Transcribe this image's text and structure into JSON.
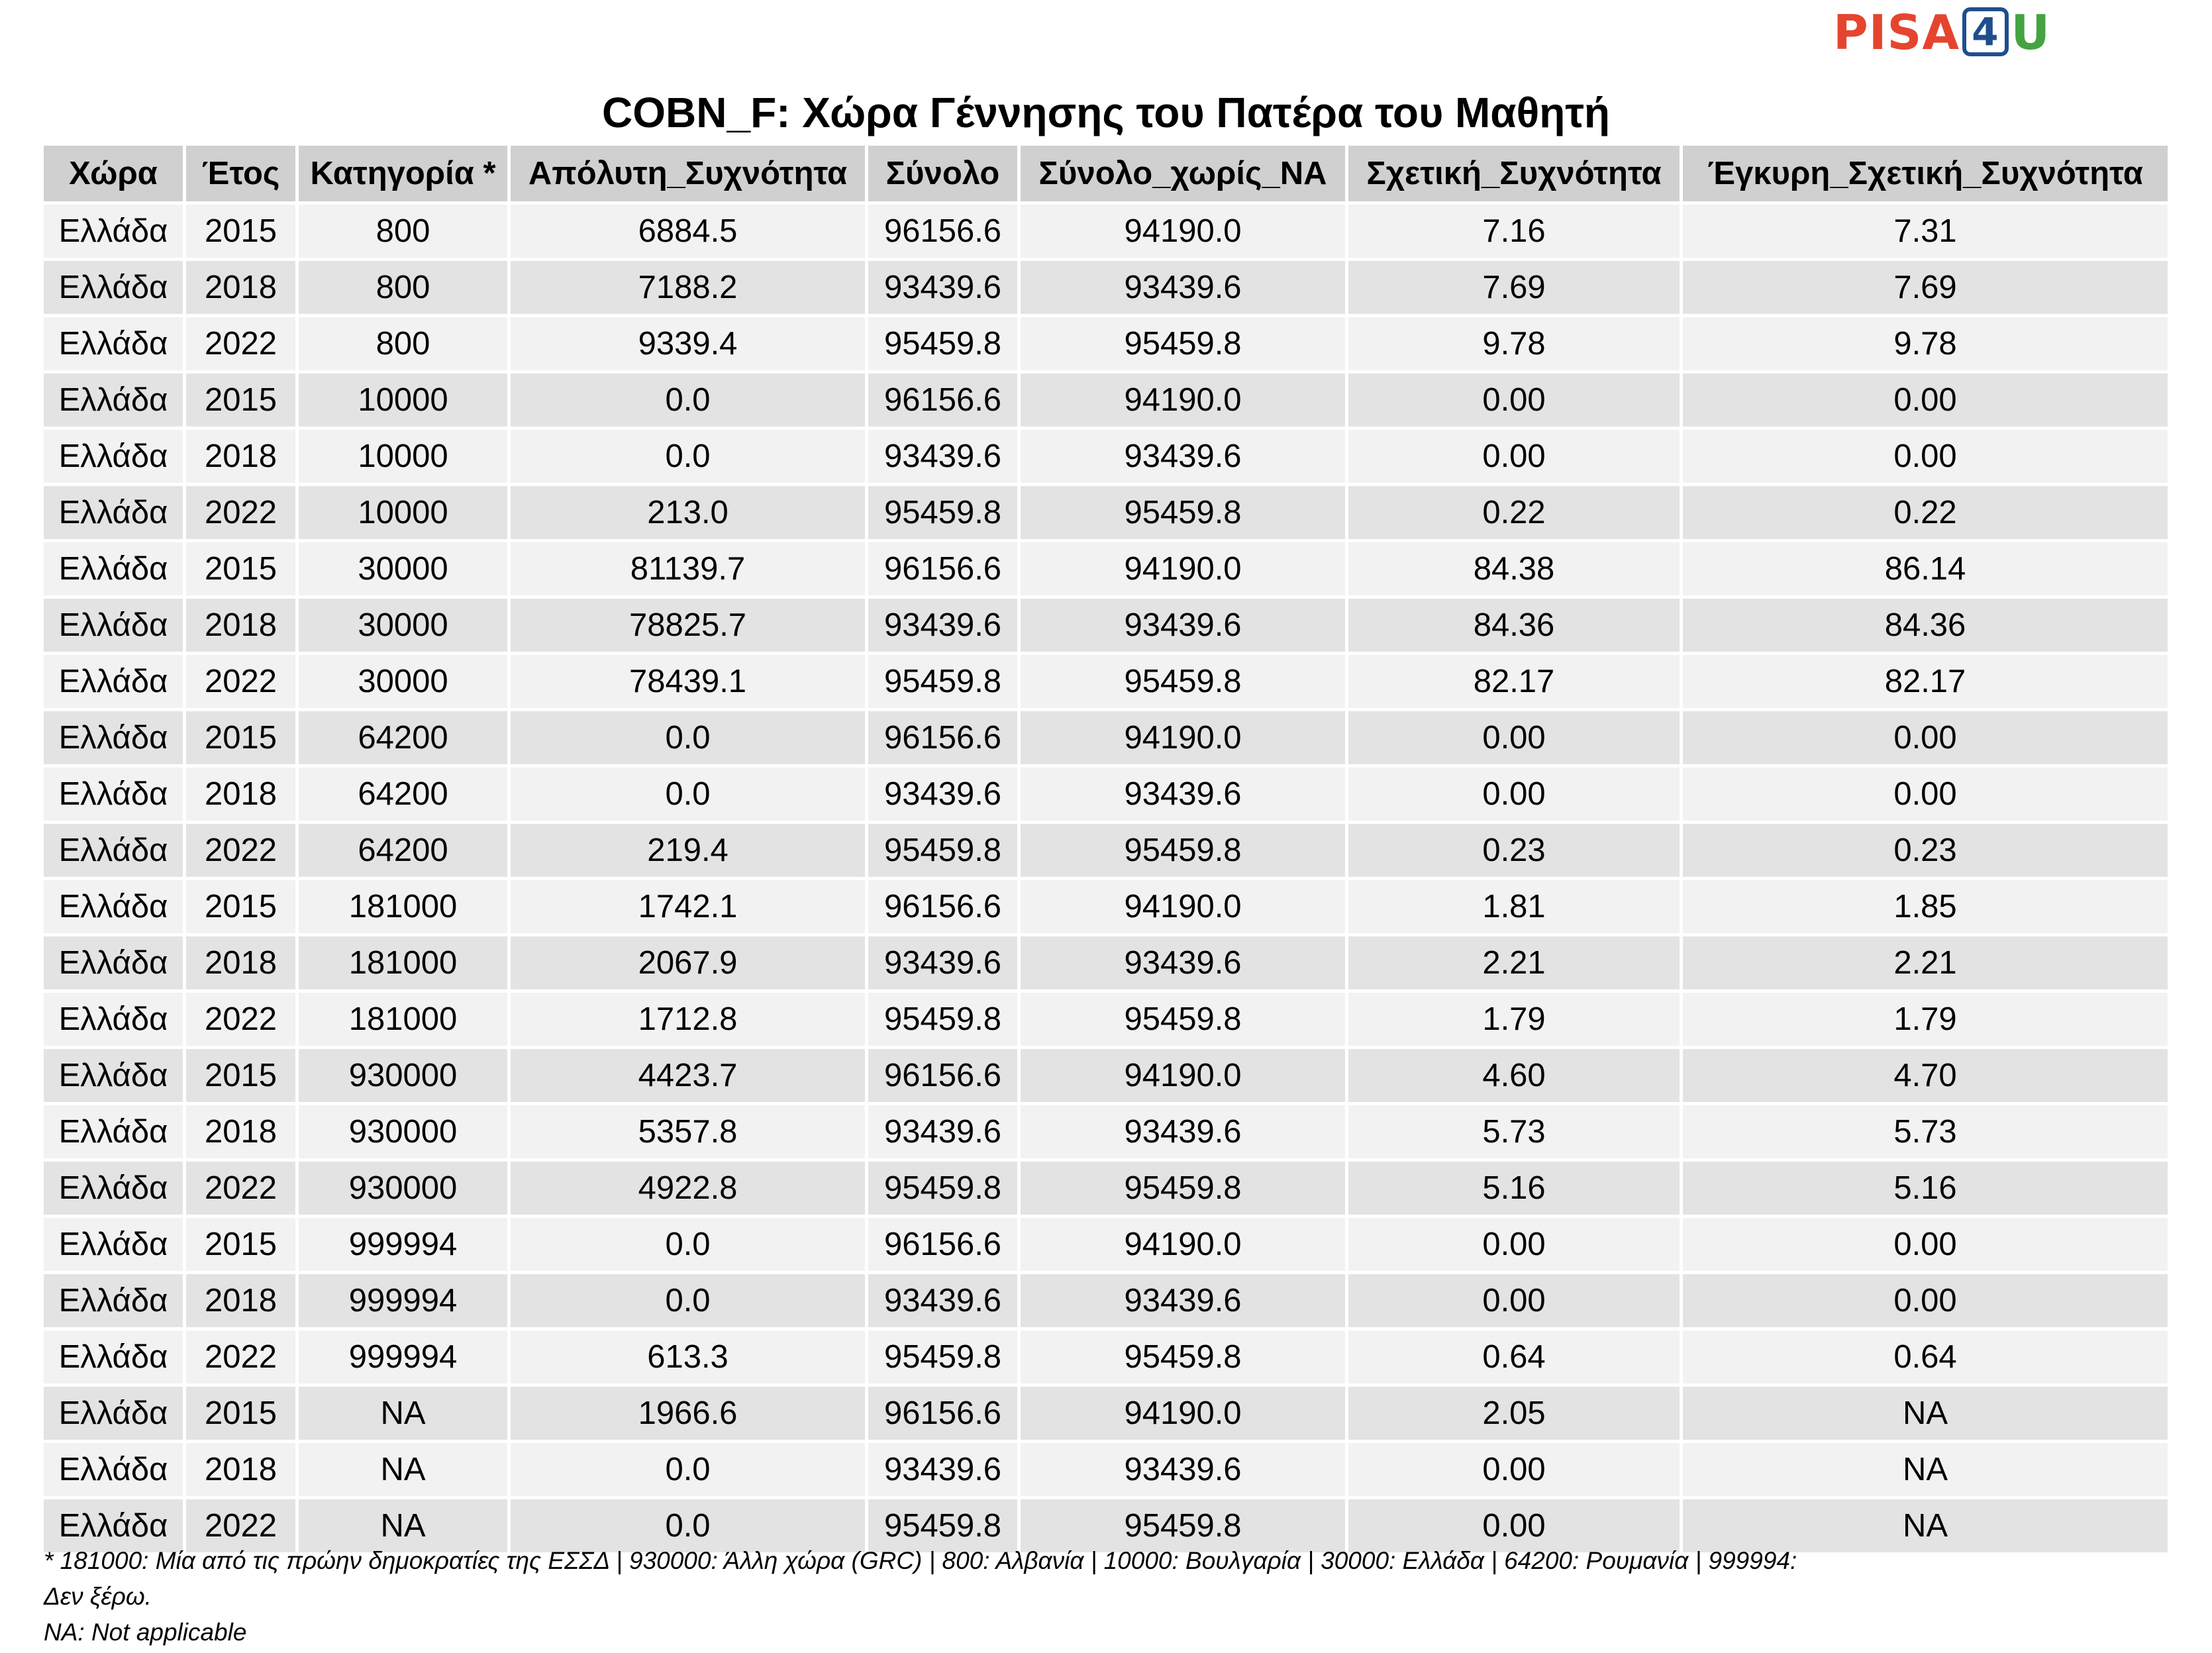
{
  "logo": {
    "part1": "PISA",
    "part2": "4",
    "part3": "U"
  },
  "title": "COBN_F: Χώρα Γέννησης του Πατέρα του Μαθητή",
  "table": {
    "columns": [
      "Χώρα",
      "Έτος",
      "Κατηγορία *",
      "Απόλυτη_Συχνότητα",
      "Σύνολο",
      "Σύνολο_χωρίς_NA",
      "Σχετική_Συχνότητα",
      "Έγκυρη_Σχετική_Συχνότητα"
    ],
    "rows": [
      [
        "Ελλάδα",
        "2015",
        "800",
        "6884.5",
        "96156.6",
        "94190.0",
        "7.16",
        "7.31"
      ],
      [
        "Ελλάδα",
        "2018",
        "800",
        "7188.2",
        "93439.6",
        "93439.6",
        "7.69",
        "7.69"
      ],
      [
        "Ελλάδα",
        "2022",
        "800",
        "9339.4",
        "95459.8",
        "95459.8",
        "9.78",
        "9.78"
      ],
      [
        "Ελλάδα",
        "2015",
        "10000",
        "0.0",
        "96156.6",
        "94190.0",
        "0.00",
        "0.00"
      ],
      [
        "Ελλάδα",
        "2018",
        "10000",
        "0.0",
        "93439.6",
        "93439.6",
        "0.00",
        "0.00"
      ],
      [
        "Ελλάδα",
        "2022",
        "10000",
        "213.0",
        "95459.8",
        "95459.8",
        "0.22",
        "0.22"
      ],
      [
        "Ελλάδα",
        "2015",
        "30000",
        "81139.7",
        "96156.6",
        "94190.0",
        "84.38",
        "86.14"
      ],
      [
        "Ελλάδα",
        "2018",
        "30000",
        "78825.7",
        "93439.6",
        "93439.6",
        "84.36",
        "84.36"
      ],
      [
        "Ελλάδα",
        "2022",
        "30000",
        "78439.1",
        "95459.8",
        "95459.8",
        "82.17",
        "82.17"
      ],
      [
        "Ελλάδα",
        "2015",
        "64200",
        "0.0",
        "96156.6",
        "94190.0",
        "0.00",
        "0.00"
      ],
      [
        "Ελλάδα",
        "2018",
        "64200",
        "0.0",
        "93439.6",
        "93439.6",
        "0.00",
        "0.00"
      ],
      [
        "Ελλάδα",
        "2022",
        "64200",
        "219.4",
        "95459.8",
        "95459.8",
        "0.23",
        "0.23"
      ],
      [
        "Ελλάδα",
        "2015",
        "181000",
        "1742.1",
        "96156.6",
        "94190.0",
        "1.81",
        "1.85"
      ],
      [
        "Ελλάδα",
        "2018",
        "181000",
        "2067.9",
        "93439.6",
        "93439.6",
        "2.21",
        "2.21"
      ],
      [
        "Ελλάδα",
        "2022",
        "181000",
        "1712.8",
        "95459.8",
        "95459.8",
        "1.79",
        "1.79"
      ],
      [
        "Ελλάδα",
        "2015",
        "930000",
        "4423.7",
        "96156.6",
        "94190.0",
        "4.60",
        "4.70"
      ],
      [
        "Ελλάδα",
        "2018",
        "930000",
        "5357.8",
        "93439.6",
        "93439.6",
        "5.73",
        "5.73"
      ],
      [
        "Ελλάδα",
        "2022",
        "930000",
        "4922.8",
        "95459.8",
        "95459.8",
        "5.16",
        "5.16"
      ],
      [
        "Ελλάδα",
        "2015",
        "999994",
        "0.0",
        "96156.6",
        "94190.0",
        "0.00",
        "0.00"
      ],
      [
        "Ελλάδα",
        "2018",
        "999994",
        "0.0",
        "93439.6",
        "93439.6",
        "0.00",
        "0.00"
      ],
      [
        "Ελλάδα",
        "2022",
        "999994",
        "613.3",
        "95459.8",
        "95459.8",
        "0.64",
        "0.64"
      ],
      [
        "Ελλάδα",
        "2015",
        "NA",
        "1966.6",
        "96156.6",
        "94190.0",
        "2.05",
        "NA"
      ],
      [
        "Ελλάδα",
        "2018",
        "NA",
        "0.0",
        "93439.6",
        "93439.6",
        "0.00",
        "NA"
      ],
      [
        "Ελλάδα",
        "2022",
        "NA",
        "0.0",
        "95459.8",
        "95459.8",
        "0.00",
        "NA"
      ]
    ]
  },
  "footnotes": {
    "categories": "* 181000: Μία από τις πρώην δημοκρατίες της ΕΣΣΔ | 930000: Άλλη χώρα (GRC) | 800: Αλβανία | 10000: Βουλγαρία | 30000: Ελλάδα | 64200: Ρουμανία | 999994: Δεν ξέρω.",
    "na": "NA: Not applicable"
  }
}
